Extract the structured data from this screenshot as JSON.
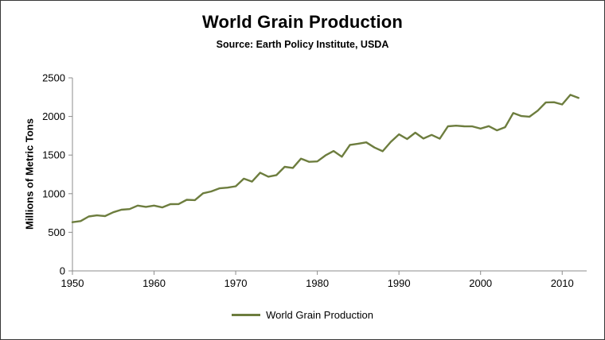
{
  "chart_data": {
    "type": "line",
    "title": "World Grain Production",
    "subtitle": "Source: Earth Policy Institute, USDA",
    "ylabel": "Millions of Metric Tons",
    "xlabel": "",
    "ylim": [
      0,
      2500
    ],
    "ytick_interval": 500,
    "yticks": [
      0,
      500,
      1000,
      1500,
      2000,
      2500
    ],
    "xlim": [
      1950,
      2013
    ],
    "xticks": [
      1950,
      1960,
      1970,
      1980,
      1990,
      2000,
      2010
    ],
    "grid": false,
    "legend_position": "bottom",
    "line_color": "#6D7D3E",
    "axis_color": "#8C8C8C",
    "legend": [
      {
        "label": "World Grain Production",
        "color": "#6D7D3E"
      }
    ],
    "series": [
      {
        "name": "World Grain Production",
        "x": [
          1950,
          1951,
          1952,
          1953,
          1954,
          1955,
          1956,
          1957,
          1958,
          1959,
          1960,
          1961,
          1962,
          1963,
          1964,
          1965,
          1966,
          1967,
          1968,
          1969,
          1970,
          1971,
          1972,
          1973,
          1974,
          1975,
          1976,
          1977,
          1978,
          1979,
          1980,
          1981,
          1982,
          1983,
          1984,
          1985,
          1986,
          1987,
          1988,
          1989,
          1990,
          1991,
          1992,
          1993,
          1994,
          1995,
          1996,
          1997,
          1998,
          1999,
          2000,
          2001,
          2002,
          2003,
          2004,
          2005,
          2006,
          2007,
          2008,
          2009,
          2010,
          2011,
          2012
        ],
        "values": [
          631,
          645,
          705,
          719,
          710,
          759,
          792,
          800,
          846,
          829,
          846,
          822,
          864,
          865,
          921,
          917,
          1005,
          1029,
          1069,
          1078,
          1096,
          1194,
          1156,
          1272,
          1220,
          1241,
          1348,
          1333,
          1454,
          1413,
          1418,
          1496,
          1552,
          1478,
          1632,
          1647,
          1665,
          1598,
          1549,
          1671,
          1769,
          1708,
          1790,
          1714,
          1761,
          1712,
          1872,
          1881,
          1872,
          1871,
          1843,
          1875,
          1820,
          1861,
          2044,
          2005,
          1997,
          2075,
          2182,
          2184,
          2155,
          2280,
          2241
        ]
      }
    ]
  }
}
